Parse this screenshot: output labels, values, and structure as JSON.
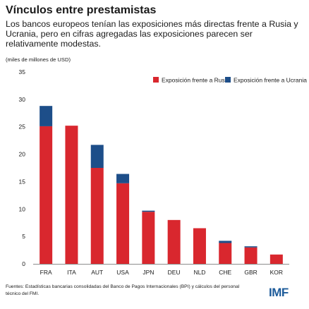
{
  "header": {
    "title": "Vínculos entre prestamistas",
    "subtitle": "Los bancos europeos tenían las exposiciones más directas frente a Rusia y Ucrania, pero en cifras agregadas las exposiciones parecen ser relativamente modestas."
  },
  "chart_data": {
    "type": "bar",
    "stacked": true,
    "title": "Vínculos entre prestamistas",
    "ylabel": "(miles de millones de USD)",
    "xlabel": "",
    "ylim": [
      0,
      35
    ],
    "yticks": [
      0,
      5,
      10,
      15,
      20,
      25,
      30,
      35
    ],
    "grid": false,
    "legend_position": "top-right",
    "categories": [
      "FRA",
      "ITA",
      "AUT",
      "USA",
      "JPN",
      "DEU",
      "NLD",
      "CHE",
      "GBR",
      "KOR"
    ],
    "series": [
      {
        "name": "Exposición frente a Rusia",
        "color": "#d9272e",
        "values": [
          25.1,
          25.2,
          17.5,
          14.7,
          9.5,
          8.0,
          6.5,
          3.8,
          3.0,
          1.7
        ]
      },
      {
        "name": "Exposición frente a Ucrania",
        "color": "#1d4e89",
        "values": [
          3.7,
          0.0,
          4.2,
          1.7,
          0.2,
          0.0,
          0.0,
          0.4,
          0.2,
          0.0
        ]
      }
    ]
  },
  "footer": {
    "source": "Fuentes: Estadísticas bancarias consolidadas del Banco de Pagos Internacionales (BPI) y cálculos del personal técnico del FMI.",
    "logo": "IMF"
  }
}
